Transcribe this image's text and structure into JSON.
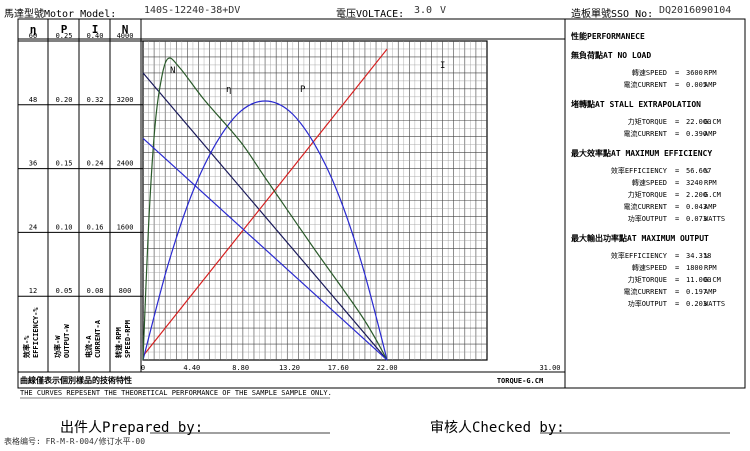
{
  "header": {
    "model_label": "馬達型號Motor Model:",
    "model_value": "140S-12240-38+DV",
    "voltage_label": "電压VOLTACE:",
    "voltage_value": "3.0",
    "voltage_unit": "V",
    "sso_label": "造板單號SSO No:",
    "sso_value": "DQ2016090104"
  },
  "left_scales": {
    "headers": [
      "η",
      "P",
      "I",
      "N"
    ],
    "rows": [
      [
        "60",
        "0.25",
        "0.40",
        "4000"
      ],
      [
        "48",
        "0.20",
        "0.32",
        "3200"
      ],
      [
        "36",
        "0.15",
        "0.24",
        "2400"
      ],
      [
        "24",
        "0.10",
        "0.16",
        "1600"
      ],
      [
        "12",
        "0.05",
        "0.08",
        "800"
      ]
    ],
    "vertical_labels": [
      "效率-%\nEFFICIENCY-%",
      "功率-W\nOUTPUT-W",
      "电流-A\nCURRENT-A",
      "转速-RPM\nSPEED-RPM"
    ]
  },
  "chart_data": {
    "type": "line",
    "x_axis": {
      "label": "TORQUE-G.CM",
      "range": [
        0,
        31
      ],
      "ticks": [
        "0",
        "4.40",
        "8.80",
        "13.20",
        "17.60",
        "22.00",
        "31.00"
      ]
    },
    "y_axes": {
      "efficiency_pct": [
        0,
        60
      ],
      "output_w": [
        0,
        0.25
      ],
      "current_a": [
        0,
        0.4
      ],
      "speed_rpm": [
        0,
        4000
      ]
    },
    "grid": true,
    "series": [
      {
        "name": "N",
        "color": "#1a1a5a",
        "axis": "speed_rpm",
        "x": [
          0,
          22
        ],
        "y": [
          3600,
          0
        ]
      },
      {
        "name": "I",
        "color": "#d62020",
        "axis": "current_a",
        "x": [
          0,
          22
        ],
        "y": [
          0.005,
          0.39
        ]
      },
      {
        "name": "P",
        "color": "#2a2ad0",
        "axis": "output_w",
        "x": [
          0,
          2.2,
          4.4,
          6.6,
          8.8,
          11,
          13.2,
          15.4,
          17.6,
          19.8,
          22
        ],
        "y": [
          0,
          0.073,
          0.13,
          0.17,
          0.195,
          0.203,
          0.195,
          0.17,
          0.13,
          0.073,
          0
        ]
      },
      {
        "name": "η",
        "color": "#2a5a2a",
        "axis": "efficiency_pct",
        "x": [
          0,
          0.5,
          1.0,
          1.5,
          2.2,
          3.3,
          5.5,
          8.8,
          11.0,
          15.4,
          19.8,
          22
        ],
        "y": [
          0,
          25,
          42,
          51,
          56.6,
          55,
          49,
          41,
          34.3,
          21,
          8,
          0
        ]
      },
      {
        "name": "",
        "color": "#2a2ad0",
        "axis": "speed_rpm",
        "x": [
          0,
          22
        ],
        "y": [
          2780,
          0
        ]
      }
    ],
    "curve_labels": [
      "N",
      "η",
      "P",
      "I"
    ]
  },
  "performance": {
    "title": "性能PERFORMANECE",
    "sections": [
      {
        "title": "無負荷點AT NO LOAD",
        "rows": [
          {
            "label": "轉速SPEED",
            "value": "3600",
            "unit": "RPM"
          },
          {
            "label": "電流CURRENT",
            "value": "0.005",
            "unit": "AMP"
          }
        ]
      },
      {
        "title": "堵轉點AT STALL EXTRAPOLATION",
        "rows": [
          {
            "label": "力矩TORQUE",
            "value": "22.000",
            "unit": "G.CM"
          },
          {
            "label": "電流CURRENT",
            "value": "0.390",
            "unit": "AMP"
          }
        ]
      },
      {
        "title": "最大效率點AT MAXIMUM EFFICIENCY",
        "rows": [
          {
            "label": "效率EFFICIENCY",
            "value": "56.607",
            "unit": "%"
          },
          {
            "label": "轉速SPEED",
            "value": "3240",
            "unit": "RPM"
          },
          {
            "label": "力矩TORQUE",
            "value": "2.200",
            "unit": "G.CM"
          },
          {
            "label": "電流CURRENT",
            "value": "0.043",
            "unit": "AMP"
          },
          {
            "label": "功率OUTPUT",
            "value": "0.073",
            "unit": "WATTS"
          }
        ]
      },
      {
        "title": "最大輸出功率點AT MAXIMUM OUTPUT",
        "rows": [
          {
            "label": "效率EFFICIENCY",
            "value": "34.318",
            "unit": "%"
          },
          {
            "label": "轉速SPEED",
            "value": "1800",
            "unit": "RPM"
          },
          {
            "label": "力矩TORQUE",
            "value": "11.000",
            "unit": "G.CM"
          },
          {
            "label": "電流CURRENT",
            "value": "0.197",
            "unit": "AMP"
          },
          {
            "label": "功率OUTPUT",
            "value": "0.203",
            "unit": "WATTS"
          }
        ]
      }
    ]
  },
  "footer": {
    "note_cn": "曲線僅表示個別樣品的技術特性",
    "note_en": "THE CURVES REPESENT THE THEORETICAL PERFORMANCE OF THE SAMPLE SAMPLE ONLY.",
    "prepared_by": "出件人Prepared by:",
    "checked_by": "审核人Checked by:",
    "form_no": "表格编号: FR-M-R-004/修订水平-00"
  }
}
